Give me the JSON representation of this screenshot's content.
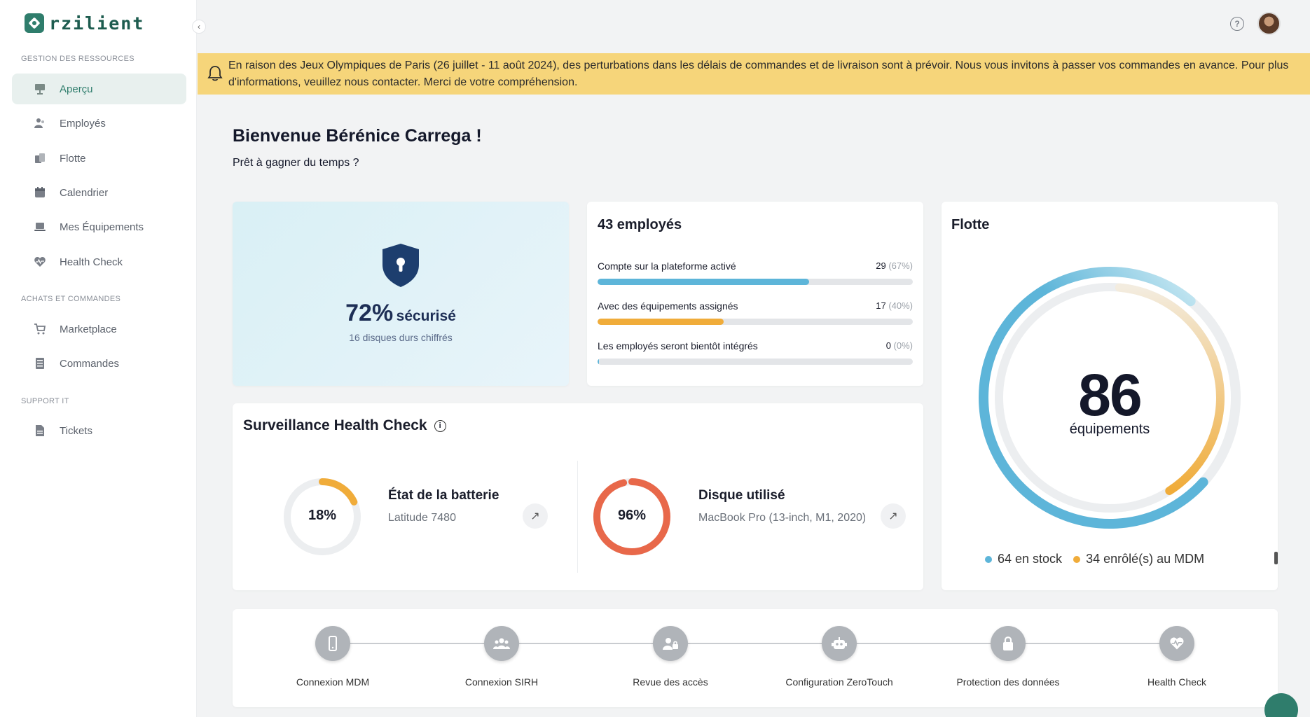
{
  "app": {
    "brand": "rzilient",
    "accent": "#2f7d6c"
  },
  "sidebar": {
    "sections": [
      {
        "label": "GESTION DES RESSOURCES"
      },
      {
        "label": "ACHATS ET COMMANDES"
      },
      {
        "label": "SUPPORT IT"
      }
    ],
    "items": [
      {
        "label": "Aperçu",
        "icon": "overview-icon",
        "active": true
      },
      {
        "label": "Employés",
        "icon": "employees-icon"
      },
      {
        "label": "Flotte",
        "icon": "fleet-icon"
      },
      {
        "label": "Calendrier",
        "icon": "calendar-icon"
      },
      {
        "label": "Mes Équipements",
        "icon": "laptop-icon"
      },
      {
        "label": "Health Check",
        "icon": "heart-icon"
      },
      {
        "label": "Marketplace",
        "icon": "cart-icon"
      },
      {
        "label": "Commandes",
        "icon": "orders-icon"
      },
      {
        "label": "Tickets",
        "icon": "ticket-icon"
      }
    ]
  },
  "header": {
    "help_icon": "help-icon",
    "help_glyph": "?",
    "avatar": "user-avatar",
    "collapse_glyph": "‹"
  },
  "banner": {
    "text": "En raison des Jeux Olympiques de Paris (26 juillet - 11 août 2024), des perturbations dans les délais de commandes et de livraison sont à prévoir. Nous vous invitons à passer vos commandes en avance. Pour plus d'informations, veuillez nous contacter. Merci de votre compréhension.",
    "color": "#f6d57a"
  },
  "welcome": {
    "title": "Bienvenue Bérénice Carrega !",
    "subtitle": "Prêt à gagner du temps ?"
  },
  "security": {
    "percent": "72%",
    "label": "sécurisé",
    "sub": "16 disques durs chiffrés"
  },
  "employees": {
    "title": "43 employés",
    "rows": [
      {
        "label": "Compte sur la plateforme activé",
        "value": "29",
        "pct": "(67%)",
        "ratio": 0.67,
        "color": "#5db5d9"
      },
      {
        "label": "Avec des équipements assignés",
        "value": "17",
        "pct": "(40%)",
        "ratio": 0.4,
        "color": "#f0ac3a"
      },
      {
        "label": "Les employés seront bientôt intégrés",
        "value": "0",
        "pct": "(0%)",
        "ratio": 0.0,
        "color": "#5db5d9"
      }
    ]
  },
  "fleet": {
    "title": "Flotte",
    "count": "86",
    "count_label": "équipements",
    "legend": [
      {
        "label": "64 en stock",
        "color": "#5db5d9",
        "value": 64
      },
      {
        "label": "34 enrôlé(s) au MDM",
        "color": "#f0ac3a",
        "value": 34
      }
    ]
  },
  "health": {
    "title": "Surveillance Health Check",
    "info_glyph": "i",
    "arrow_glyph": "↗",
    "items": [
      {
        "value": "18%",
        "ratio": 0.18,
        "name": "État de la batterie",
        "device": "Latitude 7480",
        "color": "#f0ac3a"
      },
      {
        "value": "96%",
        "ratio": 0.96,
        "name": "Disque utilisé",
        "device": "MacBook Pro (13-inch, M1, 2020)",
        "color": "#e8684a"
      }
    ]
  },
  "steps": [
    {
      "label": "Connexion MDM",
      "icon": "phone-icon"
    },
    {
      "label": "Connexion SIRH",
      "icon": "users-icon"
    },
    {
      "label": "Revue des accès",
      "icon": "user-lock-icon"
    },
    {
      "label": "Configuration ZeroTouch",
      "icon": "robot-icon"
    },
    {
      "label": "Protection des données",
      "icon": "lock-icon"
    },
    {
      "label": "Health Check",
      "icon": "heart-icon"
    }
  ]
}
